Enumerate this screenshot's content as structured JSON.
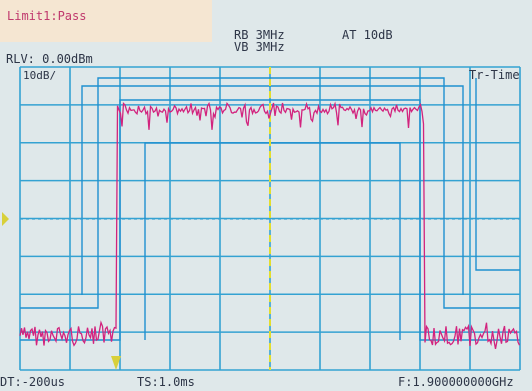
{
  "header": {
    "limit_status": "Limit1:Pass",
    "rbw": "RB 3MHz",
    "vbw": "VB 3MHz",
    "attenuation": "AT 10dB",
    "ref_level": "RLV: 0.00dBm",
    "scale": "10dB/",
    "mode": "Tr-Time"
  },
  "footer": {
    "delay_time": "DT:-200us",
    "sweep_time": "TS:1.0ms",
    "frequency": "F:1.900000000GHz"
  },
  "colors": {
    "trace": "#d2237e",
    "grid": "#34a2d2",
    "limit_line": "#1f8fd0",
    "cursor": "#e3dd2c",
    "text": "#2d3547",
    "limit_pass_text": "#c0396d",
    "marker": "#d8d03a"
  },
  "grid": {
    "divisions_x": 10,
    "divisions_y": 8
  },
  "trace": {
    "noise_floor_div": 7.1,
    "burst_level_div": 1.0,
    "burst_start_frac": 0.198,
    "burst_end_frac": 0.803
  },
  "icons": {
    "left_marker": "triangle-right-icon",
    "trigger_marker": "triangle-down-icon"
  }
}
